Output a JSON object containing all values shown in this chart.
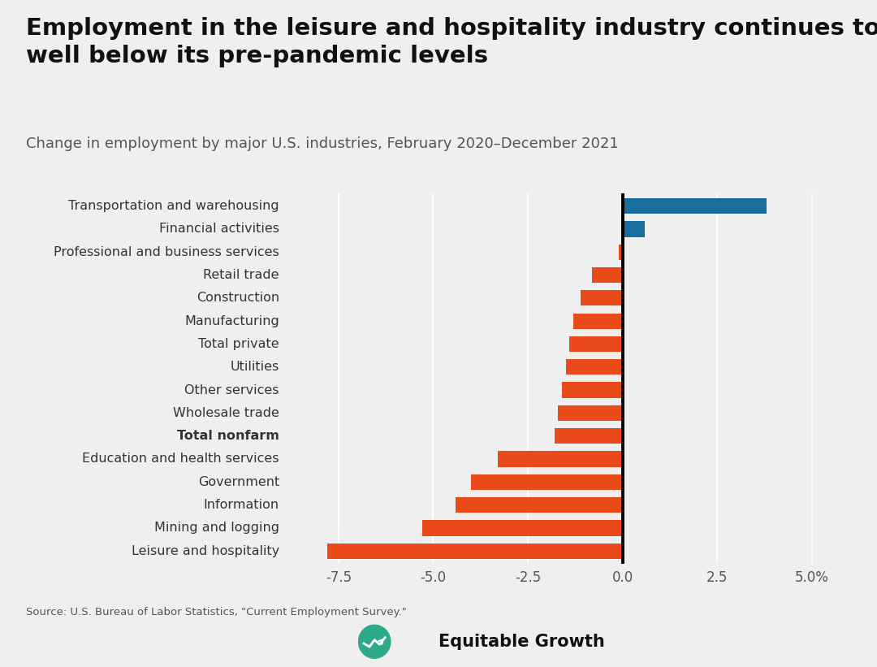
{
  "title": "Employment in the leisure and hospitality industry continues to be\nwell below its pre-pandemic levels",
  "subtitle": "Change in employment by major U.S. industries, February 2020–December 2021",
  "source": "Source: U.S. Bureau of Labor Statistics, \"Current Employment Survey.\"",
  "categories": [
    "Transportation and warehousing",
    "Financial activities",
    "Professional and business services",
    "Retail trade",
    "Construction",
    "Manufacturing",
    "Total private",
    "Utilities",
    "Other services",
    "Wholesale trade",
    "Total nonfarm",
    "Education and health services",
    "Government",
    "Information",
    "Mining and logging",
    "Leisure and hospitality"
  ],
  "values": [
    3.8,
    0.6,
    -0.1,
    -0.8,
    -1.1,
    -1.3,
    -1.4,
    -1.5,
    -1.6,
    -1.7,
    -1.8,
    -3.3,
    -4.0,
    -4.4,
    -5.3,
    -7.8
  ],
  "bar_colors": [
    "#1a6e9e",
    "#1a6e9e",
    "#e84a1a",
    "#e84a1a",
    "#e84a1a",
    "#e84a1a",
    "#e84a1a",
    "#e84a1a",
    "#e84a1a",
    "#e84a1a",
    "#e84a1a",
    "#e84a1a",
    "#e84a1a",
    "#e84a1a",
    "#e84a1a",
    "#e84a1a"
  ],
  "bold_label": "Total nonfarm",
  "xlim": [
    -8.8,
    5.8
  ],
  "xticks": [
    -7.5,
    -5.0,
    -2.5,
    0.0,
    2.5,
    5.0
  ],
  "xtick_labels": [
    "-7.5",
    "-5.0",
    "-2.5",
    "0.0",
    "2.5",
    "5.0%"
  ],
  "background_color": "#efefef",
  "title_fontsize": 21,
  "subtitle_fontsize": 13,
  "label_fontsize": 11.5,
  "tick_fontsize": 12
}
